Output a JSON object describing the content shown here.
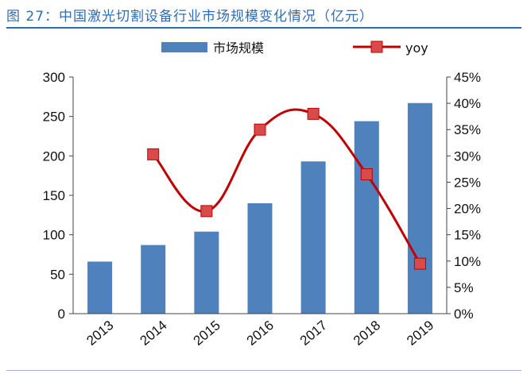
{
  "title": "图 27：中国激光切割设备行业市场规模变化情况（亿元）",
  "colors": {
    "bar": "#4F81BD",
    "line": "#C00000",
    "marker": "#D84B4B",
    "title": "#2E6DB4"
  },
  "chart_data": {
    "type": "bar+line",
    "categories": [
      "2013",
      "2014",
      "2015",
      "2016",
      "2017",
      "2018",
      "2019"
    ],
    "series": [
      {
        "name": "市场规模",
        "type": "bar",
        "axis": "left",
        "values": [
          66,
          87,
          104,
          140,
          193,
          244,
          267
        ]
      },
      {
        "name": "yoy",
        "type": "line",
        "axis": "right",
        "values": [
          null,
          30.3,
          19.5,
          35.0,
          38.0,
          26.5,
          9.5
        ]
      }
    ],
    "y_left": {
      "lim": [
        0,
        300
      ],
      "ticks": [
        "0",
        "50",
        "100",
        "150",
        "200",
        "250",
        "300"
      ]
    },
    "y_right": {
      "lim": [
        0,
        45
      ],
      "ticks": [
        "0%",
        "5%",
        "10%",
        "15%",
        "20%",
        "25%",
        "30%",
        "35%",
        "40%",
        "45%"
      ]
    },
    "legend_position": "top",
    "grid": false
  }
}
